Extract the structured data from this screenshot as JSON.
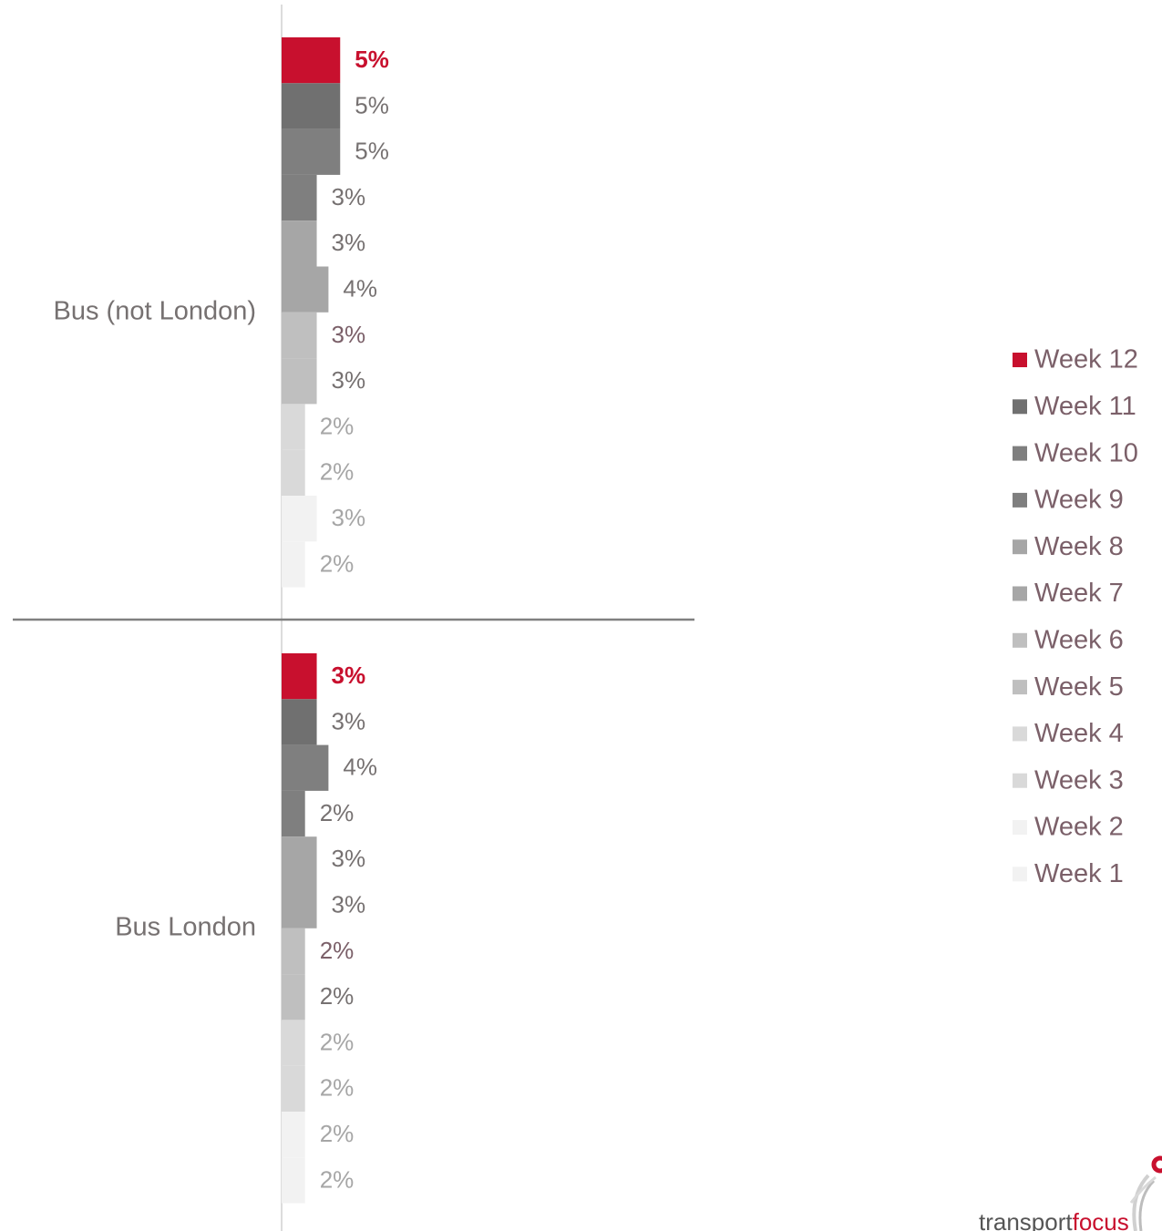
{
  "chart_data": {
    "type": "bar",
    "orientation": "horizontal",
    "categories": [
      "Bus (not London)",
      "Bus London"
    ],
    "series": [
      {
        "name": "Week 12",
        "color": "#c8102e",
        "values": [
          5,
          3
        ],
        "labels": [
          "5%",
          "3%"
        ]
      },
      {
        "name": "Week 11",
        "color": "#707070",
        "values": [
          5,
          3
        ],
        "labels": [
          "5%",
          "3%"
        ]
      },
      {
        "name": "Week 10",
        "color": "#7f7f7f",
        "values": [
          5,
          4
        ],
        "labels": [
          "5%",
          "4%"
        ]
      },
      {
        "name": "Week 9",
        "color": "#7f7f7f",
        "values": [
          3,
          2
        ],
        "labels": [
          "3%",
          "2%"
        ]
      },
      {
        "name": "Week 8",
        "color": "#a6a6a6",
        "values": [
          3,
          3
        ],
        "labels": [
          "3%",
          "3%"
        ]
      },
      {
        "name": "Week 7",
        "color": "#a6a6a6",
        "values": [
          4,
          3
        ],
        "labels": [
          "4%",
          "3%"
        ]
      },
      {
        "name": "Week 6",
        "color": "#bfbfbf",
        "values": [
          3,
          2
        ],
        "labels": [
          "3%",
          "2%"
        ]
      },
      {
        "name": "Week 5",
        "color": "#bfbfbf",
        "values": [
          3,
          2
        ],
        "labels": [
          "3%",
          "2%"
        ]
      },
      {
        "name": "Week 4",
        "color": "#d9d9d9",
        "values": [
          2,
          2
        ],
        "labels": [
          "2%",
          "2%"
        ]
      },
      {
        "name": "Week 3",
        "color": "#d9d9d9",
        "values": [
          2,
          2
        ],
        "labels": [
          "2%",
          "2%"
        ]
      },
      {
        "name": "Week 2",
        "color": "#f2f2f2",
        "values": [
          3,
          2
        ],
        "labels": [
          "3%",
          "2%"
        ]
      },
      {
        "name": "Week 1",
        "color": "#f2f2f2",
        "values": [
          2,
          2
        ],
        "labels": [
          "2%",
          "2%"
        ]
      }
    ],
    "label_colors": [
      "#c8102e",
      "#767171",
      "#767171",
      "#767171",
      "#767171",
      "#767171",
      "#7b6069",
      "#767171",
      "#a6a6a6",
      "#a6a6a6",
      "#a6a6a6",
      "#a6a6a6"
    ],
    "legend_position": "right",
    "grid": false
  },
  "logo": {
    "text_main": "transport",
    "text_accent": "focus"
  }
}
